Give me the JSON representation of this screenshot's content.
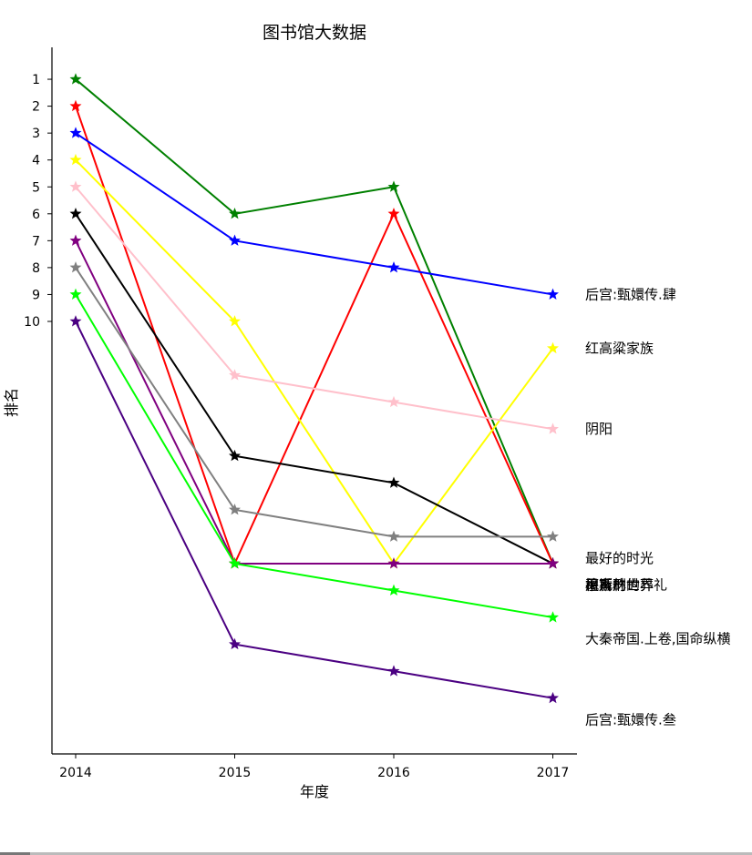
{
  "chart_data": {
    "type": "line",
    "title": "图书馆大数据",
    "xlabel": "年度",
    "ylabel": "排名",
    "x": [
      "2014",
      "2015",
      "2016",
      "2017"
    ],
    "y_ticks": [
      "1",
      "2",
      "3",
      "4",
      "5",
      "6",
      "7",
      "8",
      "9",
      "10"
    ],
    "ylim": [
      0,
      26
    ],
    "y_inverted": true,
    "grid": false,
    "marker": "star",
    "series": [
      {
        "color": "#008000",
        "values": [
          1,
          6,
          5,
          19
        ]
      },
      {
        "color": "#ff0000",
        "values": [
          2,
          19,
          6,
          19
        ]
      },
      {
        "color": "#0000ff",
        "values": [
          3,
          7,
          8,
          9
        ]
      },
      {
        "color": "#ffff00",
        "values": [
          4,
          10,
          19,
          11
        ]
      },
      {
        "color": "#ffc0cb",
        "values": [
          5,
          12,
          13,
          14
        ]
      },
      {
        "color": "#000000",
        "values": [
          6,
          15,
          16,
          19
        ]
      },
      {
        "color": "#800080",
        "values": [
          7,
          19,
          19,
          19
        ]
      },
      {
        "color": "#808080",
        "values": [
          8,
          17,
          18,
          18
        ]
      },
      {
        "color": "#00ff00",
        "values": [
          9,
          19,
          20,
          21
        ]
      },
      {
        "color": "#4b0082",
        "values": [
          10,
          22,
          23,
          24
        ]
      }
    ],
    "end_labels": [
      {
        "text": "后宫:甄嬛传.肆",
        "y": 9
      },
      {
        "text": "红高粱家族",
        "y": 11
      },
      {
        "text": "阴阳",
        "y": 14
      },
      {
        "text": "最好的时光",
        "y": 18.8
      },
      {
        "text": "平凡的世界",
        "y": 19.8
      },
      {
        "text": "穆斯林的葬礼",
        "y": 19.8
      },
      {
        "text": "檀香刑",
        "y": 19.8
      },
      {
        "text": "风声",
        "y": 19.8
      },
      {
        "text": "大秦帝国.上卷,国命纵横",
        "y": 21.8
      },
      {
        "text": "后宫:甄嬛传.叁",
        "y": 24.8
      }
    ]
  }
}
